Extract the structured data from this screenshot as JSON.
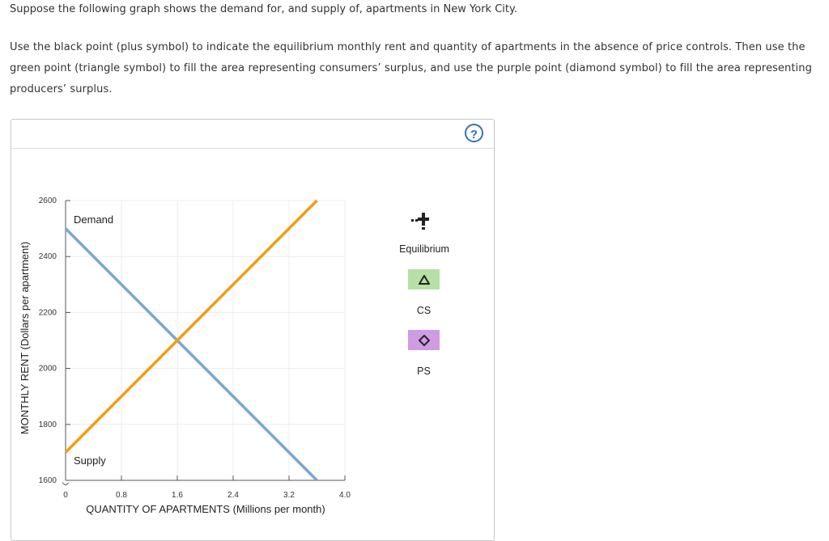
{
  "question": {
    "line1": "Suppose the following graph shows the demand for, and supply of, apartments in New York City.",
    "line2": "Use the black point (plus symbol) to indicate the equilibrium monthly rent and quantity of apartments in the absence of price controls. Then use the green point (triangle symbol) to fill the area representing consumers’ surplus, and use the purple point (diamond symbol) to fill the area representing producers’ surplus."
  },
  "help_label": "?",
  "tools": {
    "equilibrium_label": "Equilibrium",
    "cs_label": "CS",
    "ps_label": "PS",
    "cs_color": "#b6e0a5",
    "ps_color": "#cf9be3"
  },
  "chart_data": {
    "type": "line",
    "xlabel": "QUANTITY OF APARTMENTS (Millions per month)",
    "ylabel": "MONTHLY RENT (Dollars per apartment)",
    "xlim": [
      0,
      4.0
    ],
    "ylim": [
      1600,
      2600
    ],
    "x_ticks": [
      "0",
      "0.8",
      "1.6",
      "2.4",
      "3.2",
      "4.0"
    ],
    "y_ticks": [
      "1600",
      "1800",
      "2000",
      "2200",
      "2400",
      "2600"
    ],
    "grid": true,
    "series": [
      {
        "name": "Demand",
        "color": "#7aa7cf",
        "x": [
          0,
          3.6
        ],
        "y": [
          2500,
          1600
        ]
      },
      {
        "name": "Supply",
        "color": "#f39c12",
        "x": [
          0,
          3.6
        ],
        "y": [
          1700,
          2600
        ]
      }
    ]
  }
}
